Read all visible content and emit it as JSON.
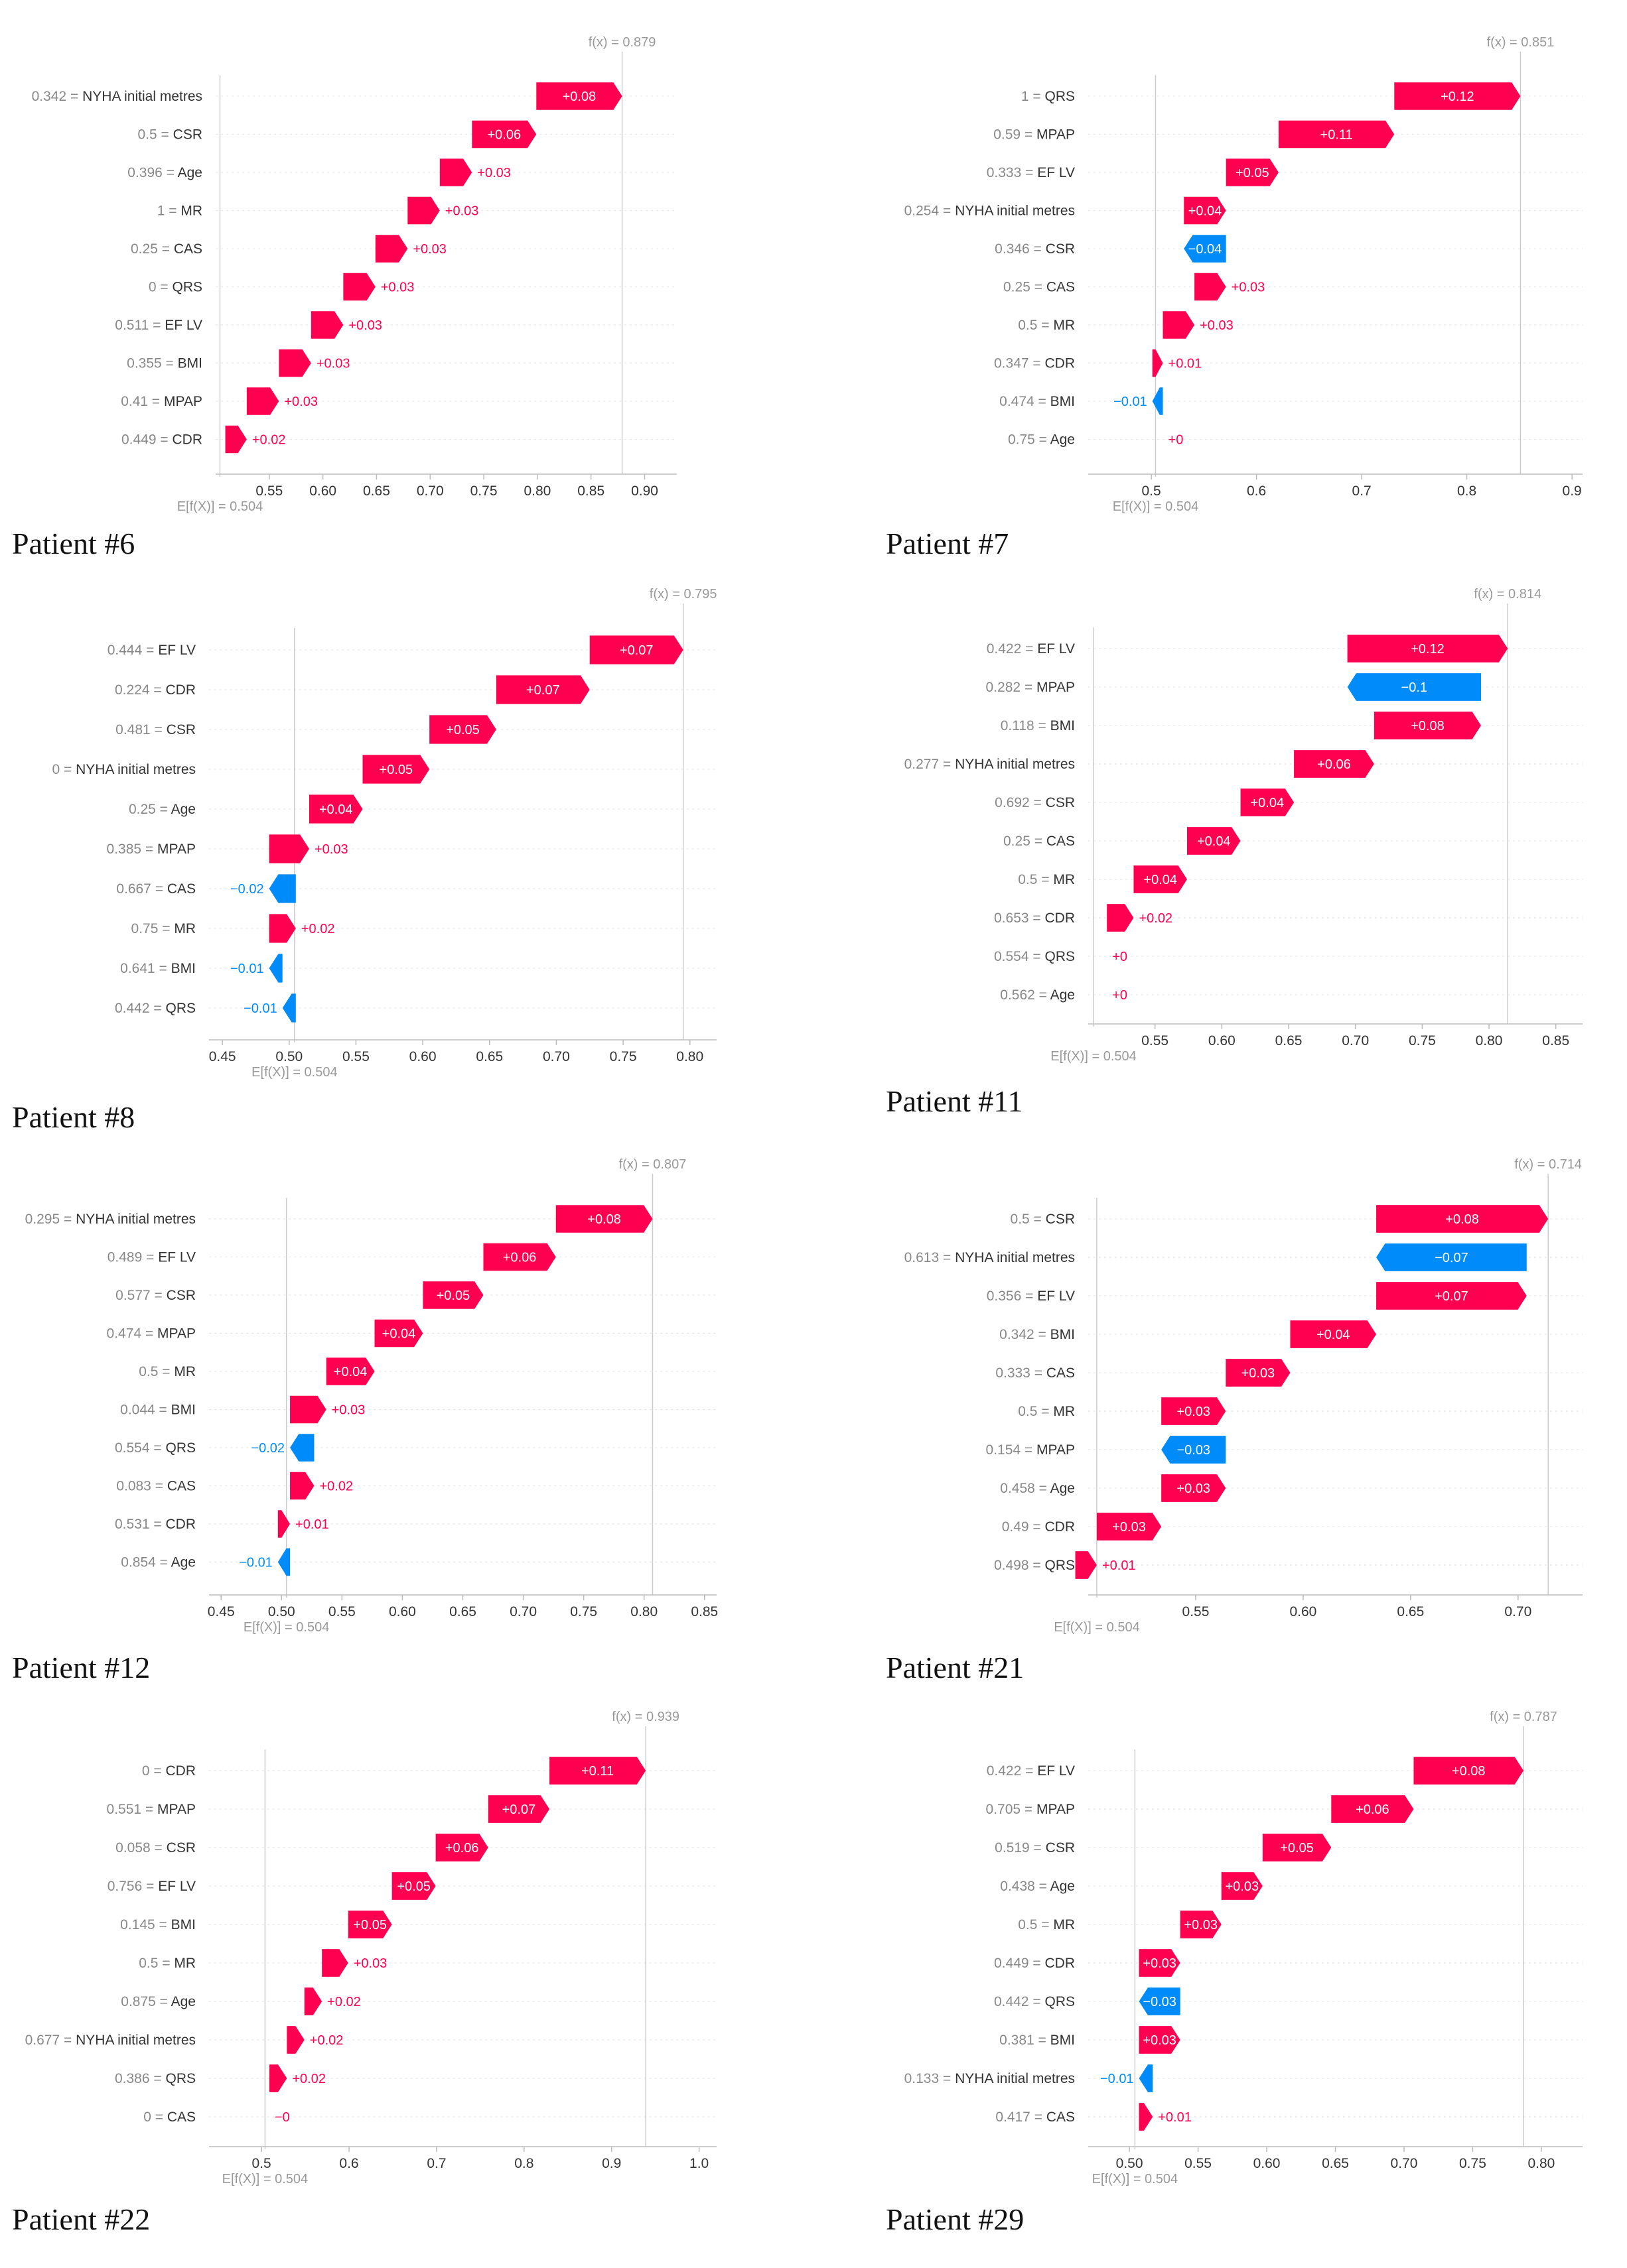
{
  "colors": {
    "positive": "#ff0051",
    "negative": "#008bfb",
    "grid": "#e6e6e6",
    "axis": "#bbbbbb",
    "text": "#333333",
    "muted": "#999999"
  },
  "chart_data": [
    {
      "type": "waterfall",
      "caption": "Patient #6",
      "fx_label": "f(x) = 0.879",
      "ex_label": "E[f(X)] = 0.504",
      "base": 0.504,
      "fx": 0.879,
      "xlim": [
        0.5,
        0.93
      ],
      "ticks": [
        "0.55",
        "0.60",
        "0.65",
        "0.70",
        "0.75",
        "0.80",
        "0.85",
        "0.90"
      ],
      "features": [
        {
          "value": "0.342",
          "name": "NYHA initial metres",
          "shap": 0.08,
          "label": "+0.08"
        },
        {
          "value": "0.5",
          "name": "CSR",
          "shap": 0.06,
          "label": "+0.06"
        },
        {
          "value": "0.396",
          "name": "Age",
          "shap": 0.03,
          "label": "+0.03"
        },
        {
          "value": "1",
          "name": "MR",
          "shap": 0.03,
          "label": "+0.03"
        },
        {
          "value": "0.25",
          "name": "CAS",
          "shap": 0.03,
          "label": "+0.03"
        },
        {
          "value": "0",
          "name": "QRS",
          "shap": 0.03,
          "label": "+0.03"
        },
        {
          "value": "0.511",
          "name": "EF LV",
          "shap": 0.03,
          "label": "+0.03"
        },
        {
          "value": "0.355",
          "name": "BMI",
          "shap": 0.03,
          "label": "+0.03"
        },
        {
          "value": "0.41",
          "name": "MPAP",
          "shap": 0.03,
          "label": "+0.03"
        },
        {
          "value": "0.449",
          "name": "CDR",
          "shap": 0.02,
          "label": "+0.02"
        }
      ]
    },
    {
      "type": "waterfall",
      "caption": "Patient #7",
      "fx_label": "f(x) = 0.851",
      "ex_label": "E[f(X)] = 0.504",
      "base": 0.504,
      "fx": 0.851,
      "xlim": [
        0.44,
        0.91
      ],
      "ticks": [
        "0.5",
        "0.6",
        "0.7",
        "0.8",
        "0.9"
      ],
      "features": [
        {
          "value": "1",
          "name": "QRS",
          "shap": 0.12,
          "label": "+0.12"
        },
        {
          "value": "0.59",
          "name": "MPAP",
          "shap": 0.11,
          "label": "+0.11"
        },
        {
          "value": "0.333",
          "name": "EF LV",
          "shap": 0.05,
          "label": "+0.05"
        },
        {
          "value": "0.254",
          "name": "NYHA initial metres",
          "shap": 0.04,
          "label": "+0.04"
        },
        {
          "value": "0.346",
          "name": "CSR",
          "shap": -0.04,
          "label": "−0.04"
        },
        {
          "value": "0.25",
          "name": "CAS",
          "shap": 0.03,
          "label": "+0.03"
        },
        {
          "value": "0.5",
          "name": "MR",
          "shap": 0.03,
          "label": "+0.03"
        },
        {
          "value": "0.347",
          "name": "CDR",
          "shap": 0.01,
          "label": "+0.01"
        },
        {
          "value": "0.474",
          "name": "BMI",
          "shap": -0.01,
          "label": "−0.01"
        },
        {
          "value": "0.75",
          "name": "Age",
          "shap": 0.0,
          "label": "+0"
        }
      ]
    },
    {
      "type": "waterfall",
      "caption": "Patient #8",
      "fx_label": "f(x) = 0.795",
      "ex_label": "E[f(X)] = 0.504",
      "base": 0.504,
      "fx": 0.795,
      "xlim": [
        0.44,
        0.82
      ],
      "ticks": [
        "0.45",
        "0.50",
        "0.55",
        "0.60",
        "0.65",
        "0.70",
        "0.75",
        "0.80"
      ],
      "features": [
        {
          "value": "0.444",
          "name": "EF LV",
          "shap": 0.07,
          "label": "+0.07"
        },
        {
          "value": "0.224",
          "name": "CDR",
          "shap": 0.07,
          "label": "+0.07"
        },
        {
          "value": "0.481",
          "name": "CSR",
          "shap": 0.05,
          "label": "+0.05"
        },
        {
          "value": "0",
          "name": "NYHA initial metres",
          "shap": 0.05,
          "label": "+0.05"
        },
        {
          "value": "0.25",
          "name": "Age",
          "shap": 0.04,
          "label": "+0.04"
        },
        {
          "value": "0.385",
          "name": "MPAP",
          "shap": 0.03,
          "label": "+0.03"
        },
        {
          "value": "0.667",
          "name": "CAS",
          "shap": -0.02,
          "label": "−0.02"
        },
        {
          "value": "0.75",
          "name": "MR",
          "shap": 0.02,
          "label": "+0.02"
        },
        {
          "value": "0.641",
          "name": "BMI",
          "shap": -0.01,
          "label": "−0.01"
        },
        {
          "value": "0.442",
          "name": "QRS",
          "shap": -0.01,
          "label": "−0.01"
        }
      ]
    },
    {
      "type": "waterfall",
      "caption": "Patient #11",
      "fx_label": "f(x) = 0.814",
      "ex_label": "E[f(X)] = 0.504",
      "base": 0.504,
      "fx": 0.814,
      "xlim": [
        0.5,
        0.87
      ],
      "ticks": [
        "0.55",
        "0.60",
        "0.65",
        "0.70",
        "0.75",
        "0.80",
        "0.85"
      ],
      "features": [
        {
          "value": "0.422",
          "name": "EF LV",
          "shap": 0.12,
          "label": "+0.12"
        },
        {
          "value": "0.282",
          "name": "MPAP",
          "shap": -0.1,
          "label": "−0.1"
        },
        {
          "value": "0.118",
          "name": "BMI",
          "shap": 0.08,
          "label": "+0.08"
        },
        {
          "value": "0.277",
          "name": "NYHA initial metres",
          "shap": 0.06,
          "label": "+0.06"
        },
        {
          "value": "0.692",
          "name": "CSR",
          "shap": 0.04,
          "label": "+0.04"
        },
        {
          "value": "0.25",
          "name": "CAS",
          "shap": 0.04,
          "label": "+0.04"
        },
        {
          "value": "0.5",
          "name": "MR",
          "shap": 0.04,
          "label": "+0.04"
        },
        {
          "value": "0.653",
          "name": "CDR",
          "shap": 0.02,
          "label": "+0.02"
        },
        {
          "value": "0.554",
          "name": "QRS",
          "shap": 0.0,
          "label": "+0"
        },
        {
          "value": "0.562",
          "name": "Age",
          "shap": 0.0,
          "label": "+0"
        }
      ]
    },
    {
      "type": "waterfall",
      "caption": "Patient #12",
      "fx_label": "f(x) = 0.807",
      "ex_label": "E[f(X)] = 0.504",
      "base": 0.504,
      "fx": 0.807,
      "xlim": [
        0.44,
        0.86
      ],
      "ticks": [
        "0.45",
        "0.50",
        "0.55",
        "0.60",
        "0.65",
        "0.70",
        "0.75",
        "0.80",
        "0.85"
      ],
      "features": [
        {
          "value": "0.295",
          "name": "NYHA initial metres",
          "shap": 0.08,
          "label": "+0.08"
        },
        {
          "value": "0.489",
          "name": "EF LV",
          "shap": 0.06,
          "label": "+0.06"
        },
        {
          "value": "0.577",
          "name": "CSR",
          "shap": 0.05,
          "label": "+0.05"
        },
        {
          "value": "0.474",
          "name": "MPAP",
          "shap": 0.04,
          "label": "+0.04"
        },
        {
          "value": "0.5",
          "name": "MR",
          "shap": 0.04,
          "label": "+0.04"
        },
        {
          "value": "0.044",
          "name": "BMI",
          "shap": 0.03,
          "label": "+0.03"
        },
        {
          "value": "0.554",
          "name": "QRS",
          "shap": -0.02,
          "label": "−0.02"
        },
        {
          "value": "0.083",
          "name": "CAS",
          "shap": 0.02,
          "label": "+0.02"
        },
        {
          "value": "0.531",
          "name": "CDR",
          "shap": 0.01,
          "label": "+0.01"
        },
        {
          "value": "0.854",
          "name": "Age",
          "shap": -0.01,
          "label": "−0.01"
        }
      ]
    },
    {
      "type": "waterfall",
      "caption": "Patient #21",
      "fx_label": "f(x) = 0.714",
      "ex_label": "E[f(X)] = 0.504",
      "base": 0.504,
      "fx": 0.714,
      "xlim": [
        0.5,
        0.73
      ],
      "ticks": [
        "0.55",
        "0.60",
        "0.65",
        "0.70"
      ],
      "features": [
        {
          "value": "0.5",
          "name": "CSR",
          "shap": 0.08,
          "label": "+0.08"
        },
        {
          "value": "0.613",
          "name": "NYHA initial metres",
          "shap": -0.07,
          "label": "−0.07"
        },
        {
          "value": "0.356",
          "name": "EF LV",
          "shap": 0.07,
          "label": "+0.07"
        },
        {
          "value": "0.342",
          "name": "BMI",
          "shap": 0.04,
          "label": "+0.04"
        },
        {
          "value": "0.333",
          "name": "CAS",
          "shap": 0.03,
          "label": "+0.03"
        },
        {
          "value": "0.5",
          "name": "MR",
          "shap": 0.03,
          "label": "+0.03"
        },
        {
          "value": "0.154",
          "name": "MPAP",
          "shap": -0.03,
          "label": "−0.03"
        },
        {
          "value": "0.458",
          "name": "Age",
          "shap": 0.03,
          "label": "+0.03"
        },
        {
          "value": "0.49",
          "name": "CDR",
          "shap": 0.03,
          "label": "+0.03"
        },
        {
          "value": "0.498",
          "name": "QRS",
          "shap": 0.01,
          "label": "+0.01"
        }
      ]
    },
    {
      "type": "waterfall",
      "caption": "Patient #22",
      "fx_label": "f(x) = 0.939",
      "ex_label": "E[f(X)] = 0.504",
      "base": 0.504,
      "fx": 0.939,
      "xlim": [
        0.44,
        1.02
      ],
      "ticks": [
        "0.5",
        "0.6",
        "0.7",
        "0.8",
        "0.9",
        "1.0"
      ],
      "features": [
        {
          "value": "0",
          "name": "CDR",
          "shap": 0.11,
          "label": "+0.11"
        },
        {
          "value": "0.551",
          "name": "MPAP",
          "shap": 0.07,
          "label": "+0.07"
        },
        {
          "value": "0.058",
          "name": "CSR",
          "shap": 0.06,
          "label": "+0.06"
        },
        {
          "value": "0.756",
          "name": "EF LV",
          "shap": 0.05,
          "label": "+0.05"
        },
        {
          "value": "0.145",
          "name": "BMI",
          "shap": 0.05,
          "label": "+0.05"
        },
        {
          "value": "0.5",
          "name": "MR",
          "shap": 0.03,
          "label": "+0.03"
        },
        {
          "value": "0.875",
          "name": "Age",
          "shap": 0.02,
          "label": "+0.02"
        },
        {
          "value": "0.677",
          "name": "NYHA initial metres",
          "shap": 0.02,
          "label": "+0.02"
        },
        {
          "value": "0.386",
          "name": "QRS",
          "shap": 0.02,
          "label": "+0.02"
        },
        {
          "value": "0",
          "name": "CAS",
          "shap": 0.0,
          "label": "−0"
        }
      ]
    },
    {
      "type": "waterfall",
      "caption": "Patient #29",
      "fx_label": "f(x) = 0.787",
      "ex_label": "E[f(X)] = 0.504",
      "base": 0.504,
      "fx": 0.787,
      "xlim": [
        0.47,
        0.83
      ],
      "ticks": [
        "0.50",
        "0.55",
        "0.60",
        "0.65",
        "0.70",
        "0.75",
        "0.80"
      ],
      "features": [
        {
          "value": "0.422",
          "name": "EF LV",
          "shap": 0.08,
          "label": "+0.08"
        },
        {
          "value": "0.705",
          "name": "MPAP",
          "shap": 0.06,
          "label": "+0.06"
        },
        {
          "value": "0.519",
          "name": "CSR",
          "shap": 0.05,
          "label": "+0.05"
        },
        {
          "value": "0.438",
          "name": "Age",
          "shap": 0.03,
          "label": "+0.03"
        },
        {
          "value": "0.5",
          "name": "MR",
          "shap": 0.03,
          "label": "+0.03"
        },
        {
          "value": "0.449",
          "name": "CDR",
          "shap": 0.03,
          "label": "+0.03"
        },
        {
          "value": "0.442",
          "name": "QRS",
          "shap": -0.03,
          "label": "−0.03"
        },
        {
          "value": "0.381",
          "name": "BMI",
          "shap": 0.03,
          "label": "+0.03"
        },
        {
          "value": "0.133",
          "name": "NYHA initial metres",
          "shap": -0.01,
          "label": "−0.01"
        },
        {
          "value": "0.417",
          "name": "CAS",
          "shap": 0.01,
          "label": "+0.01"
        }
      ]
    }
  ]
}
